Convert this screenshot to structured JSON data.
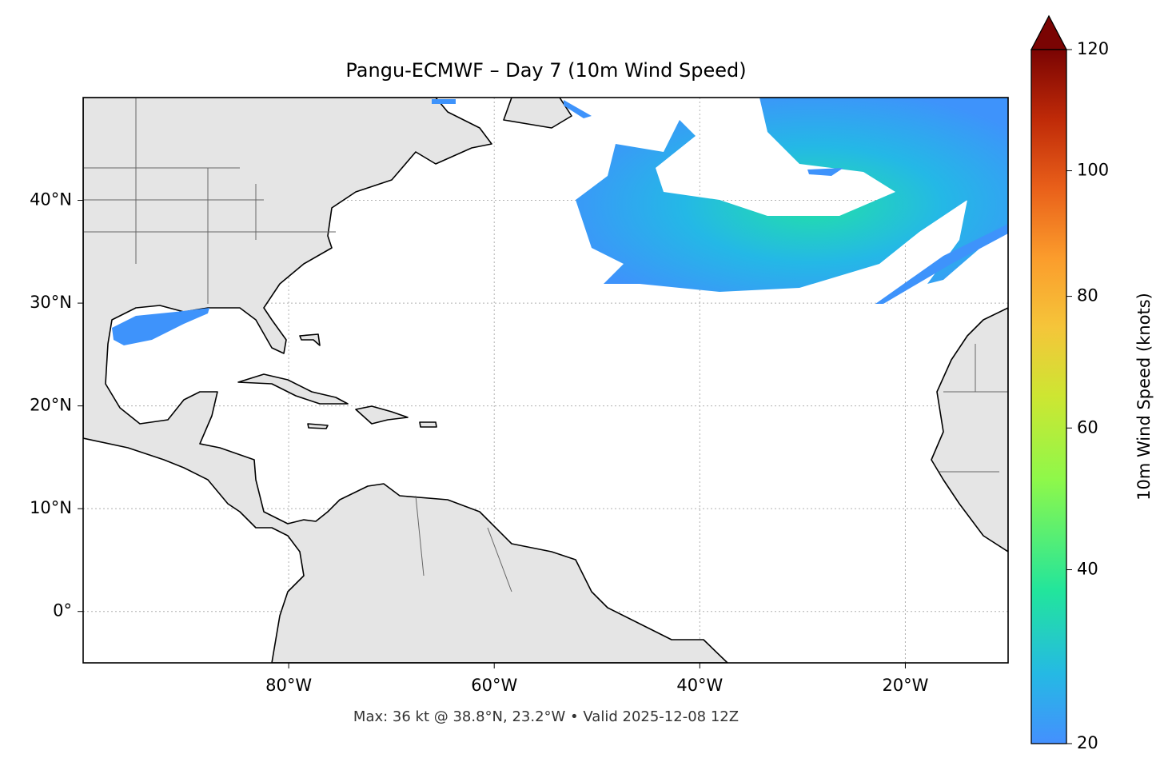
{
  "chart_data": {
    "type": "map",
    "title": "Pangu-ECMWF – Day 7 (10m Wind Speed)",
    "xlim": [
      -100,
      -10
    ],
    "ylim": [
      -5,
      50
    ],
    "xticks": [
      {
        "value": -80,
        "label": "80°W"
      },
      {
        "value": -60,
        "label": "60°W"
      },
      {
        "value": -40,
        "label": "40°W"
      },
      {
        "value": -20,
        "label": "20°W"
      }
    ],
    "yticks": [
      {
        "value": 0,
        "label": "0°"
      },
      {
        "value": 10,
        "label": "10°N"
      },
      {
        "value": 20,
        "label": "20°N"
      },
      {
        "value": 30,
        "label": "30°N"
      },
      {
        "value": 40,
        "label": "40°N"
      }
    ],
    "grid": true,
    "footer": "Max: 36 kt @ 38.8°N, 23.2°W • Valid 2025-12-08 12Z",
    "colorbar": {
      "label": "10m Wind Speed (knots)",
      "lim": [
        20,
        120
      ],
      "norm": "power",
      "gamma": 0.86,
      "ticks": [
        20,
        40,
        60,
        80,
        100,
        120
      ],
      "extend": "max"
    }
  }
}
